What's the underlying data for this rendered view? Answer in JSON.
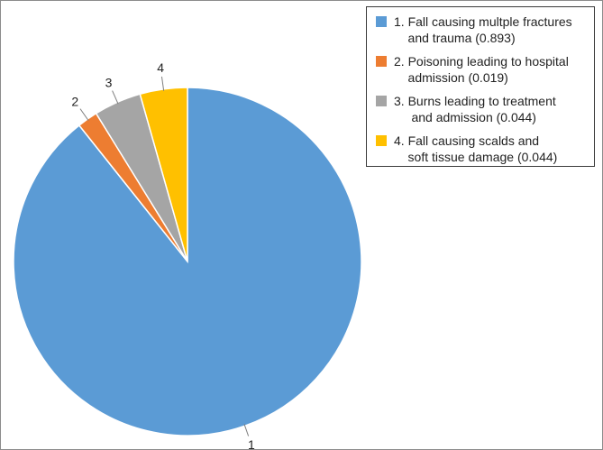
{
  "chart_data": {
    "type": "pie",
    "title": "",
    "slices": [
      {
        "label": "1",
        "legend": "1. Fall causing multple fractures\n    and trauma (0.893)",
        "value": 0.893,
        "color": "#5B9BD5"
      },
      {
        "label": "2",
        "legend": "2. Poisoning leading to hospital\n    admission (0.019)",
        "value": 0.019,
        "color": "#ED7D31"
      },
      {
        "label": "3",
        "legend": "3. Burns leading to treatment\n     and admission (0.044)",
        "value": 0.044,
        "color": "#A5A5A5"
      },
      {
        "label": "4",
        "legend": "4. Fall causing scalds and\n    soft tissue damage (0.044)",
        "value": 0.044,
        "color": "#FFC000"
      }
    ],
    "legend_position": "top-right",
    "start_angle": "12 o'clock",
    "direction": "clockwise"
  }
}
